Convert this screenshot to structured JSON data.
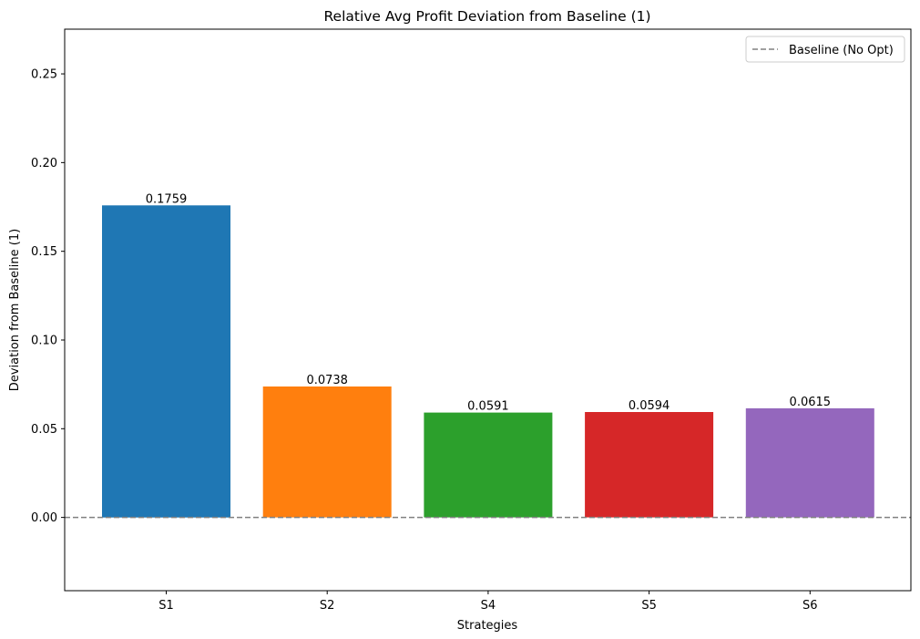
{
  "chart_data": {
    "type": "bar",
    "title": "Relative Avg Profit Deviation from Baseline (1)",
    "xlabel": "Strategies",
    "ylabel": "Deviation from Baseline (1)",
    "categories": [
      "S1",
      "S2",
      "S4",
      "S5",
      "S6"
    ],
    "values": [
      0.1759,
      0.0738,
      0.0591,
      0.0594,
      0.0615
    ],
    "value_labels": [
      "0.1759",
      "0.0738",
      "0.0591",
      "0.0594",
      "0.0615"
    ],
    "bar_colors": [
      "#1f77b4",
      "#ff7f0e",
      "#2ca02c",
      "#d62728",
      "#9467bd"
    ],
    "ylim": [
      -0.0413,
      0.2752
    ],
    "yticks": [
      0.0,
      0.05,
      0.1,
      0.15,
      0.2,
      0.25
    ],
    "ytick_labels": [
      "0.00",
      "0.05",
      "0.10",
      "0.15",
      "0.20",
      "0.25"
    ],
    "baseline": {
      "value": 0.0,
      "label": "Baseline (No Opt)",
      "color": "#808080",
      "style": "dashed"
    },
    "legend_position": "top-right",
    "grid": false
  }
}
